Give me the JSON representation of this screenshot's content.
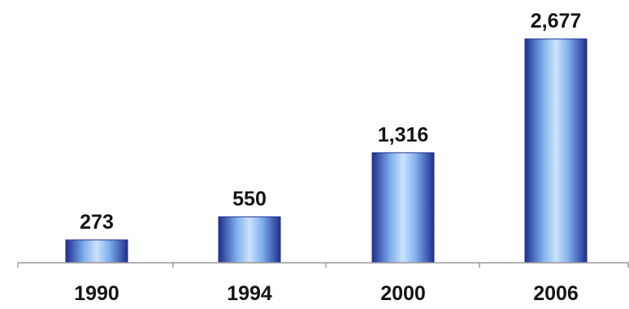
{
  "chart_data": {
    "type": "bar",
    "title": "",
    "xlabel": "",
    "ylabel": "",
    "categories": [
      "1990",
      "1994",
      "2000",
      "2006"
    ],
    "values": [
      273,
      550,
      1316,
      2677
    ],
    "value_labels": [
      "273",
      "550",
      "1,316",
      "2,677"
    ],
    "ylim": [
      0,
      2677
    ],
    "grid": false,
    "legend": "none",
    "colors": {
      "bar_edge": "#1f2f8f",
      "bar_mid": "#7fb1ee",
      "bar_highlight": "#cde2fb",
      "axis": "#9a9a9a",
      "text": "#141414"
    }
  }
}
